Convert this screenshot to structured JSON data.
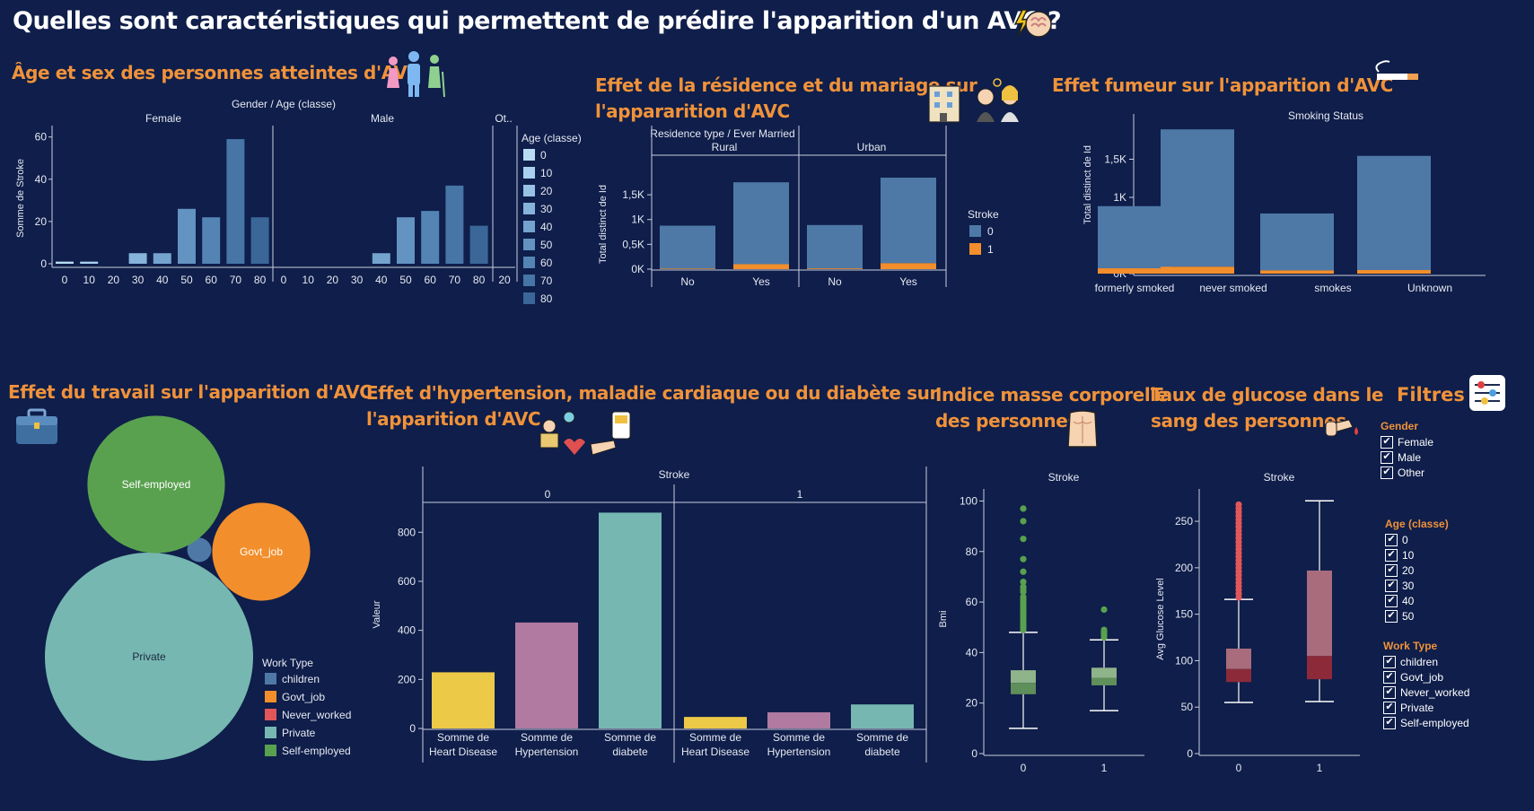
{
  "title": "Quelles sont caractéristiques qui permettent de prédire l'apparition d'un AVC ?",
  "sections": {
    "age_sex": "Âge et sex des personnes atteintes d'AVC",
    "residence_line1": "Effet de la résidence et du mariage sur",
    "residence_line2": "l'appararition d'AVC",
    "smoking": "Effet fumeur sur l'apparition d'AVC",
    "work": "Effet du travail sur l'apparition d'AVC",
    "hyper_line1": "Effet d'hypertension, maladie cardiaque ou du diabète sur",
    "hyper_line2": "l'apparition d'AVC",
    "bmi_line1": "Indice masse corporelle",
    "bmi_line2": "des personnes",
    "glucose_line1": "Taux de glucose dans le",
    "glucose_line2": "sang des personnes"
  },
  "icons": {
    "title": "brain-lightning-icon",
    "age_sex": "family-icon",
    "residence": "building-couple-icon",
    "smoking": "cigarette-icon",
    "work": "briefcase-icon",
    "hyper": "blood-pressure-icon",
    "bmi": "torso-icon",
    "glucose": "finger-drop-icon",
    "filters": "sliders-icon"
  },
  "colors": {
    "background": "#0f1e4a",
    "accent": "#f0923a",
    "stroke0": "#4e79a7",
    "stroke1": "#f28e2b"
  },
  "chart_data": [
    {
      "id": "age_sex",
      "type": "bar",
      "header": "Gender / Age (classe)",
      "panels": [
        "Female",
        "Male",
        "Ot.."
      ],
      "categories": [
        "0",
        "10",
        "20",
        "30",
        "40",
        "50",
        "60",
        "70",
        "80"
      ],
      "series": [
        {
          "name": "Female",
          "values": [
            1,
            1,
            0,
            5,
            5,
            26,
            22,
            59,
            22
          ]
        },
        {
          "name": "Male",
          "values": [
            0,
            0,
            0,
            0,
            5,
            22,
            25,
            37,
            18
          ]
        }
      ],
      "other_ticks": [
        "20"
      ],
      "ylabel": "Somme de Stroke",
      "yticks": [
        0,
        20,
        40,
        60
      ],
      "ylim": [
        0,
        62
      ],
      "legend_title": "Age (classe)",
      "legend": [
        "0",
        "10",
        "20",
        "30",
        "40",
        "50",
        "60",
        "70",
        "80"
      ],
      "legend_colors": [
        "#b9dcf3",
        "#a9d0ee",
        "#97c2e5",
        "#86b3da",
        "#74a3ce",
        "#6393c1",
        "#5484b4",
        "#4675a6",
        "#3a6798"
      ],
      "legend_position": "right"
    },
    {
      "id": "residence",
      "type": "bar",
      "stacked": true,
      "header": "Residence type / Ever Married",
      "panels": [
        "Rural",
        "Urban"
      ],
      "categories": [
        "No",
        "Yes"
      ],
      "series": [
        {
          "name": "0",
          "values": [
            [
              865,
              1652
            ],
            [
              875,
              1725
            ]
          ]
        },
        {
          "name": "1",
          "values": [
            [
              12,
              100
            ],
            [
              15,
              120
            ]
          ]
        }
      ],
      "ylabel": "Total distinct de Id",
      "yticks": [
        "0K",
        "0,5K",
        "1K",
        "1,5K"
      ],
      "ylim": [
        0,
        1900
      ],
      "legend_title": "Stroke",
      "legend": [
        "0",
        "1"
      ],
      "legend_position": "right"
    },
    {
      "id": "smoking",
      "type": "bar",
      "stacked": true,
      "header": "Smoking Status",
      "categories": [
        "formerly smoked",
        "never smoked",
        "smokes",
        "Unknown"
      ],
      "series": [
        {
          "name": "0",
          "values": [
            815,
            1802,
            747,
            1497
          ]
        },
        {
          "name": "1",
          "values": [
            70,
            90,
            42,
            47
          ]
        }
      ],
      "ylabel": "Total distinct de Id",
      "yticks": [
        "0K",
        "0,5K",
        "1K",
        "1,5K"
      ],
      "ylim": [
        0,
        2000
      ]
    },
    {
      "id": "work",
      "type": "bubble",
      "legend_title": "Work Type",
      "items": [
        {
          "name": "children",
          "value": 2,
          "color": "#4e79a7"
        },
        {
          "name": "Govt_job",
          "value": 33,
          "color": "#f28e2b"
        },
        {
          "name": "Never_worked",
          "value": 0,
          "color": "#e15759"
        },
        {
          "name": "Private",
          "value": 149,
          "color": "#76b7b2"
        },
        {
          "name": "Self-employed",
          "value": 65,
          "color": "#59a14f"
        }
      ],
      "legend_position": "bottom-right"
    },
    {
      "id": "hyper",
      "type": "bar",
      "header": "Stroke",
      "panels": [
        "0",
        "1"
      ],
      "categories": [
        "Somme de Heart Disease",
        "Somme de Hypertension",
        "Somme de diabete"
      ],
      "category_lines": [
        [
          "Somme de",
          "Heart Disease"
        ],
        [
          "Somme de",
          "Hypertension"
        ],
        [
          "Somme de",
          "diabete"
        ]
      ],
      "values": [
        [
          229,
          432,
          880
        ],
        [
          47,
          66,
          98
        ]
      ],
      "colors": [
        "#edc948",
        "#b07aa1",
        "#76b7b2"
      ],
      "ylabel": "Valeur",
      "yticks": [
        0,
        200,
        400,
        600,
        800
      ],
      "ylim": [
        0,
        940
      ]
    },
    {
      "id": "bmi",
      "type": "boxplot",
      "header": "Stroke",
      "categories": [
        "0",
        "1"
      ],
      "boxes": [
        {
          "whisker_low": 10,
          "q1": 23.5,
          "median": 28,
          "q3": 33,
          "whisker_high": 48,
          "outliers": [
            49,
            50,
            51,
            52,
            53,
            54,
            55,
            56,
            57,
            58,
            59,
            60,
            61,
            62,
            64,
            65,
            66,
            68,
            72,
            77,
            85,
            92,
            97
          ]
        },
        {
          "whisker_low": 17,
          "q1": 27,
          "median": 30,
          "q3": 34,
          "whisker_high": 45,
          "outliers": [
            46,
            47,
            48,
            49,
            57
          ]
        }
      ],
      "ylabel": "Bmi",
      "yticks": [
        0,
        20,
        40,
        60,
        80,
        100
      ],
      "ylim": [
        0,
        103
      ]
    },
    {
      "id": "glucose",
      "type": "boxplot",
      "header": "Stroke",
      "categories": [
        "0",
        "1"
      ],
      "boxes": [
        {
          "whisker_low": 55,
          "q1": 77,
          "median": 91,
          "q3": 113,
          "whisker_high": 166,
          "outliers": [
            168,
            172,
            176,
            180,
            184,
            188,
            192,
            196,
            200,
            204,
            208,
            212,
            216,
            220,
            224,
            228,
            232,
            236,
            240,
            244,
            248,
            252,
            256,
            260,
            264,
            268
          ]
        },
        {
          "whisker_low": 56,
          "q1": 80,
          "median": 105,
          "q3": 197,
          "whisker_high": 272,
          "outliers": []
        }
      ],
      "ylabel": "Avg Glucose Level",
      "yticks": [
        0,
        50,
        100,
        150,
        200,
        250
      ],
      "ylim": [
        0,
        280
      ]
    }
  ],
  "filters": {
    "title": "Filtres",
    "groups": [
      {
        "label": "Gender",
        "items": [
          "Female",
          "Male",
          "Other"
        ]
      },
      {
        "label": "Age (classe)",
        "items": [
          "0",
          "10",
          "20",
          "30",
          "40",
          "50"
        ]
      },
      {
        "label": "Work Type",
        "items": [
          "children",
          "Govt_job",
          "Never_worked",
          "Private",
          "Self-employed"
        ]
      }
    ]
  }
}
